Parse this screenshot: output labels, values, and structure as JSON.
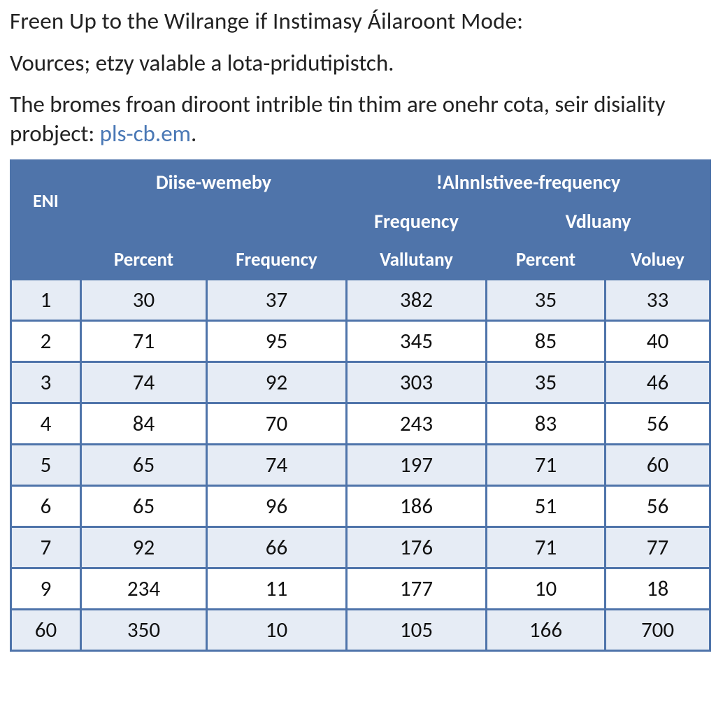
{
  "text": {
    "heading": "Freen Up to the Wilrange if Instimasy Áilaroont Mode:",
    "subline": "Vources; etzy valable a lota-pridutipistch.",
    "para_part1": "The bromes froan diroont intrible tin thim are onehr cota, seir disiality probject: ",
    "para_link": "pls-cb.em",
    "para_part2": "."
  },
  "table": {
    "type": "table",
    "header_bg": "#4f74aa",
    "header_fg": "#ffffff",
    "border_color": "#3f5e8a",
    "row_alt_bg": "#e6ecf5",
    "row_bg": "#ffffff",
    "font_family": "Calibri",
    "groups": {
      "left": "Diise-wemeby",
      "right": "!Alnnlstivee-frequency"
    },
    "mid": {
      "eni": "ENI",
      "freq": "Frequency",
      "vdl": "Vdluany"
    },
    "sub": {
      "c1": "Percent",
      "c2": "Frequency",
      "c3": "Vallutany",
      "c4": "Percent",
      "c5": "Voluey"
    },
    "columns": [
      "ENI",
      "Percent",
      "Frequency",
      "Vallutany",
      "Percent",
      "Voluey"
    ],
    "rows": [
      [
        "1",
        "30",
        "37",
        "382",
        "35",
        "33"
      ],
      [
        "2",
        "71",
        "95",
        "345",
        "85",
        "40"
      ],
      [
        "3",
        "74",
        "92",
        "303",
        "35",
        "46"
      ],
      [
        "4",
        "84",
        "70",
        "243",
        "83",
        "56"
      ],
      [
        "5",
        "65",
        "74",
        "197",
        "71",
        "60"
      ],
      [
        "6",
        "65",
        "96",
        "186",
        "51",
        "56"
      ],
      [
        "7",
        "92",
        "66",
        "176",
        "71",
        "77"
      ],
      [
        "9",
        "234",
        "11",
        "177",
        "10",
        "18"
      ],
      [
        "60",
        "350",
        "10",
        "105",
        "166",
        "700"
      ]
    ]
  }
}
